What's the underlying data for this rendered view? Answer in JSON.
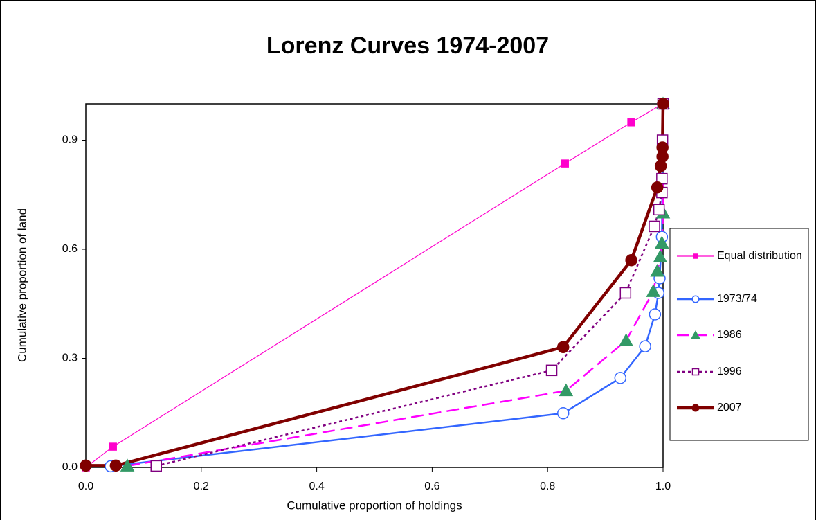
{
  "chart_data": {
    "type": "line",
    "title": "Lorenz Curves 1974-2007",
    "x_label": "Cumulative proportion of holdings",
    "y_label": "Cumulative proportion of land",
    "xlim": [
      0,
      1
    ],
    "ylim": [
      0,
      1
    ],
    "xticks": [
      {
        "value": 0,
        "label": "0.0"
      },
      0.2,
      0.4,
      0.6,
      0.8,
      {
        "value": 1,
        "label": "1.0"
      }
    ],
    "yticks": [
      {
        "value": 0,
        "label": "0.0"
      },
      0.3,
      0.6,
      0.9
    ],
    "legend": "right",
    "series": [
      {
        "name": "Equal distribution",
        "color": "#ff00cc",
        "width": 1.2,
        "dash": "none",
        "marker": "square",
        "marker_color": "#ff00cc",
        "marker_fill": true,
        "x": [
          0,
          0.047,
          0.83,
          0.945,
          0.999
        ],
        "values": [
          0,
          0.057,
          0.836,
          0.949,
          1
        ]
      },
      {
        "name": "1973/74",
        "color": "#3366ff",
        "width": 2.5,
        "dash": "none",
        "marker": "circle",
        "marker_color": "#3366ff",
        "marker_fill": false,
        "x": [
          0.043,
          0.827,
          0.926,
          0.969,
          0.986,
          0.992,
          0.994,
          0.998,
          1
        ],
        "values": [
          0.003,
          0.149,
          0.246,
          0.333,
          0.421,
          0.48,
          0.52,
          0.634,
          1
        ]
      },
      {
        "name": "1986",
        "color": "#ff00ff",
        "width": 2.5,
        "dash": "18 8",
        "marker": "triangle",
        "marker_color": "#339966",
        "marker_fill": true,
        "x": [
          0.072,
          0.832,
          0.936,
          0.983,
          0.99,
          0.995,
          0.998,
          1,
          1
        ],
        "values": [
          0.004,
          0.211,
          0.349,
          0.484,
          0.54,
          0.579,
          0.617,
          0.7,
          1
        ]
      },
      {
        "name": "1996",
        "color": "#800080",
        "width": 2.5,
        "dash": "4 4",
        "marker": "square",
        "marker_color": "#800080",
        "marker_fill": false,
        "x": [
          0.122,
          0.807,
          0.935,
          0.985,
          0.993,
          0.998,
          0.998,
          0.999,
          1
        ],
        "values": [
          0.004,
          0.267,
          0.48,
          0.663,
          0.709,
          0.756,
          0.794,
          0.9,
          1
        ]
      },
      {
        "name": "2007",
        "color": "#800000",
        "width": 4.5,
        "dash": "none",
        "marker": "circle",
        "marker_color": "#800000",
        "marker_fill": true,
        "x": [
          0,
          0.052,
          0.827,
          0.945,
          0.99,
          0.996,
          0.999,
          0.999,
          1
        ],
        "values": [
          0.005,
          0.005,
          0.331,
          0.57,
          0.77,
          0.829,
          0.855,
          0.88,
          1
        ]
      }
    ]
  }
}
